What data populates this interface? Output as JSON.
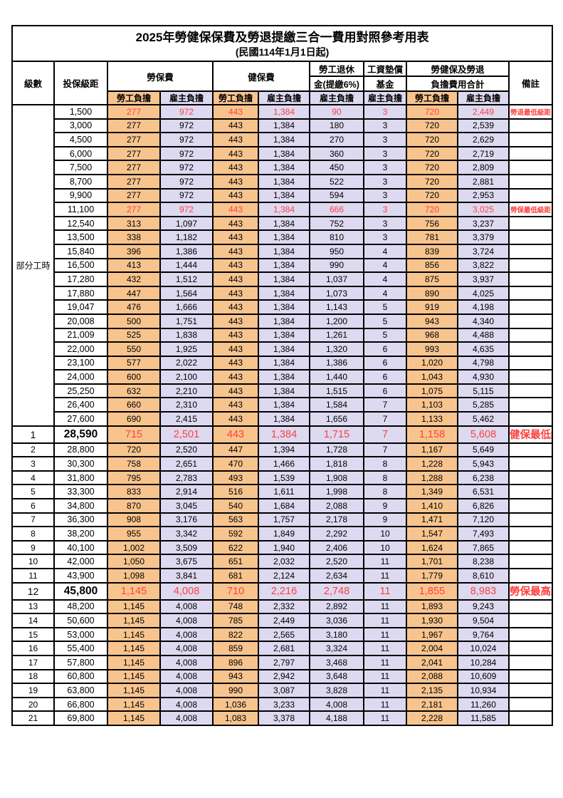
{
  "title": "2025年勞健保保費及勞退提繳三合一費用對照參考用表",
  "subtitle": "(民國114年1月1日起)",
  "header": {
    "level": "級數",
    "bracket": "投保級距",
    "labor_ins": "勞保費",
    "health_ins": "健保費",
    "pension_line1": "勞工退休",
    "pension_line2": "金(提繳6%)",
    "wage_fund_line1": "工資墊償",
    "wage_fund_line2": "基金",
    "total_line1": "勞健保及勞退",
    "total_line2": "負擔費用合計",
    "remark": "備註",
    "employee": "勞工負擔",
    "employer": "雇主負擔"
  },
  "colors": {
    "employee_bg": "#F8C48E",
    "employer_bg": "#DDD9F0",
    "highlight_text": "#FF4040",
    "border": "#000000"
  },
  "part_time_label": "部分工時",
  "part_time_rowspan": 23,
  "column_pattern": [
    "e",
    "r",
    "e",
    "r",
    "r",
    "r",
    "e",
    "r"
  ],
  "rows": [
    {
      "level": "",
      "bracket": "1,500",
      "values": [
        "277",
        "972",
        "443",
        "1,384",
        "90",
        "3",
        "720",
        "2,449"
      ],
      "remark": "勞退最低級距",
      "red": true,
      "large": false
    },
    {
      "level": "",
      "bracket": "3,000",
      "values": [
        "277",
        "972",
        "443",
        "1,384",
        "180",
        "3",
        "720",
        "2,539"
      ],
      "remark": "",
      "red": false,
      "large": false
    },
    {
      "level": "",
      "bracket": "4,500",
      "values": [
        "277",
        "972",
        "443",
        "1,384",
        "270",
        "3",
        "720",
        "2,629"
      ],
      "remark": "",
      "red": false,
      "large": false
    },
    {
      "level": "",
      "bracket": "6,000",
      "values": [
        "277",
        "972",
        "443",
        "1,384",
        "360",
        "3",
        "720",
        "2,719"
      ],
      "remark": "",
      "red": false,
      "large": false
    },
    {
      "level": "",
      "bracket": "7,500",
      "values": [
        "277",
        "972",
        "443",
        "1,384",
        "450",
        "3",
        "720",
        "2,809"
      ],
      "remark": "",
      "red": false,
      "large": false
    },
    {
      "level": "",
      "bracket": "8,700",
      "values": [
        "277",
        "972",
        "443",
        "1,384",
        "522",
        "3",
        "720",
        "2,881"
      ],
      "remark": "",
      "red": false,
      "large": false
    },
    {
      "level": "",
      "bracket": "9,900",
      "values": [
        "277",
        "972",
        "443",
        "1,384",
        "594",
        "3",
        "720",
        "2,953"
      ],
      "remark": "",
      "red": false,
      "large": false
    },
    {
      "level": "",
      "bracket": "11,100",
      "values": [
        "277",
        "972",
        "443",
        "1,384",
        "666",
        "3",
        "720",
        "3,025"
      ],
      "remark": "勞保最低級距",
      "red": true,
      "large": false
    },
    {
      "level": "",
      "bracket": "12,540",
      "values": [
        "313",
        "1,097",
        "443",
        "1,384",
        "752",
        "3",
        "756",
        "3,237"
      ],
      "remark": "",
      "red": false,
      "large": false
    },
    {
      "level": "",
      "bracket": "13,500",
      "values": [
        "338",
        "1,182",
        "443",
        "1,384",
        "810",
        "3",
        "781",
        "3,379"
      ],
      "remark": "",
      "red": false,
      "large": false
    },
    {
      "level": "",
      "bracket": "15,840",
      "values": [
        "396",
        "1,386",
        "443",
        "1,384",
        "950",
        "4",
        "839",
        "3,724"
      ],
      "remark": "",
      "red": false,
      "large": false
    },
    {
      "level": "",
      "bracket": "16,500",
      "values": [
        "413",
        "1,444",
        "443",
        "1,384",
        "990",
        "4",
        "856",
        "3,822"
      ],
      "remark": "",
      "red": false,
      "large": false
    },
    {
      "level": "",
      "bracket": "17,280",
      "values": [
        "432",
        "1,512",
        "443",
        "1,384",
        "1,037",
        "4",
        "875",
        "3,937"
      ],
      "remark": "",
      "red": false,
      "large": false
    },
    {
      "level": "",
      "bracket": "17,880",
      "values": [
        "447",
        "1,564",
        "443",
        "1,384",
        "1,073",
        "4",
        "890",
        "4,025"
      ],
      "remark": "",
      "red": false,
      "large": false
    },
    {
      "level": "",
      "bracket": "19,047",
      "values": [
        "476",
        "1,666",
        "443",
        "1,384",
        "1,143",
        "5",
        "919",
        "4,198"
      ],
      "remark": "",
      "red": false,
      "large": false
    },
    {
      "level": "",
      "bracket": "20,008",
      "values": [
        "500",
        "1,751",
        "443",
        "1,384",
        "1,200",
        "5",
        "943",
        "4,340"
      ],
      "remark": "",
      "red": false,
      "large": false
    },
    {
      "level": "",
      "bracket": "21,009",
      "values": [
        "525",
        "1,838",
        "443",
        "1,384",
        "1,261",
        "5",
        "968",
        "4,488"
      ],
      "remark": "",
      "red": false,
      "large": false
    },
    {
      "level": "",
      "bracket": "22,000",
      "values": [
        "550",
        "1,925",
        "443",
        "1,384",
        "1,320",
        "6",
        "993",
        "4,635"
      ],
      "remark": "",
      "red": false,
      "large": false
    },
    {
      "level": "",
      "bracket": "23,100",
      "values": [
        "577",
        "2,022",
        "443",
        "1,384",
        "1,386",
        "6",
        "1,020",
        "4,798"
      ],
      "remark": "",
      "red": false,
      "large": false
    },
    {
      "level": "",
      "bracket": "24,000",
      "values": [
        "600",
        "2,100",
        "443",
        "1,384",
        "1,440",
        "6",
        "1,043",
        "4,930"
      ],
      "remark": "",
      "red": false,
      "large": false
    },
    {
      "level": "",
      "bracket": "25,250",
      "values": [
        "632",
        "2,210",
        "443",
        "1,384",
        "1,515",
        "6",
        "1,075",
        "5,115"
      ],
      "remark": "",
      "red": false,
      "large": false
    },
    {
      "level": "",
      "bracket": "26,400",
      "values": [
        "660",
        "2,310",
        "443",
        "1,384",
        "1,584",
        "7",
        "1,103",
        "5,285"
      ],
      "remark": "",
      "red": false,
      "large": false
    },
    {
      "level": "",
      "bracket": "27,600",
      "values": [
        "690",
        "2,415",
        "443",
        "1,384",
        "1,656",
        "7",
        "1,133",
        "5,462"
      ],
      "remark": "",
      "red": false,
      "large": false
    },
    {
      "level": "1",
      "bracket": "28,590",
      "values": [
        "715",
        "2,501",
        "443",
        "1,384",
        "1,715",
        "7",
        "1,158",
        "5,608"
      ],
      "remark": "健保最低級距",
      "red": true,
      "large": true
    },
    {
      "level": "2",
      "bracket": "28,800",
      "values": [
        "720",
        "2,520",
        "447",
        "1,394",
        "1,728",
        "7",
        "1,167",
        "5,649"
      ],
      "remark": "",
      "red": false,
      "large": false
    },
    {
      "level": "3",
      "bracket": "30,300",
      "values": [
        "758",
        "2,651",
        "470",
        "1,466",
        "1,818",
        "8",
        "1,228",
        "5,943"
      ],
      "remark": "",
      "red": false,
      "large": false
    },
    {
      "level": "4",
      "bracket": "31,800",
      "values": [
        "795",
        "2,783",
        "493",
        "1,539",
        "1,908",
        "8",
        "1,288",
        "6,238"
      ],
      "remark": "",
      "red": false,
      "large": false
    },
    {
      "level": "5",
      "bracket": "33,300",
      "values": [
        "833",
        "2,914",
        "516",
        "1,611",
        "1,998",
        "8",
        "1,349",
        "6,531"
      ],
      "remark": "",
      "red": false,
      "large": false
    },
    {
      "level": "6",
      "bracket": "34,800",
      "values": [
        "870",
        "3,045",
        "540",
        "1,684",
        "2,088",
        "9",
        "1,410",
        "6,826"
      ],
      "remark": "",
      "red": false,
      "large": false
    },
    {
      "level": "7",
      "bracket": "36,300",
      "values": [
        "908",
        "3,176",
        "563",
        "1,757",
        "2,178",
        "9",
        "1,471",
        "7,120"
      ],
      "remark": "",
      "red": false,
      "large": false
    },
    {
      "level": "8",
      "bracket": "38,200",
      "values": [
        "955",
        "3,342",
        "592",
        "1,849",
        "2,292",
        "10",
        "1,547",
        "7,493"
      ],
      "remark": "",
      "red": false,
      "large": false
    },
    {
      "level": "9",
      "bracket": "40,100",
      "values": [
        "1,002",
        "3,509",
        "622",
        "1,940",
        "2,406",
        "10",
        "1,624",
        "7,865"
      ],
      "remark": "",
      "red": false,
      "large": false
    },
    {
      "level": "10",
      "bracket": "42,000",
      "values": [
        "1,050",
        "3,675",
        "651",
        "2,032",
        "2,520",
        "11",
        "1,701",
        "8,238"
      ],
      "remark": "",
      "red": false,
      "large": false
    },
    {
      "level": "11",
      "bracket": "43,900",
      "values": [
        "1,098",
        "3,841",
        "681",
        "2,124",
        "2,634",
        "11",
        "1,779",
        "8,610"
      ],
      "remark": "",
      "red": false,
      "large": false
    },
    {
      "level": "12",
      "bracket": "45,800",
      "values": [
        "1,145",
        "4,008",
        "710",
        "2,216",
        "2,748",
        "11",
        "1,855",
        "8,983"
      ],
      "remark": "勞保最高級距",
      "red": true,
      "large": true
    },
    {
      "level": "13",
      "bracket": "48,200",
      "values": [
        "1,145",
        "4,008",
        "748",
        "2,332",
        "2,892",
        "11",
        "1,893",
        "9,243"
      ],
      "remark": "",
      "red": false,
      "large": false
    },
    {
      "level": "14",
      "bracket": "50,600",
      "values": [
        "1,145",
        "4,008",
        "785",
        "2,449",
        "3,036",
        "11",
        "1,930",
        "9,504"
      ],
      "remark": "",
      "red": false,
      "large": false
    },
    {
      "level": "15",
      "bracket": "53,000",
      "values": [
        "1,145",
        "4,008",
        "822",
        "2,565",
        "3,180",
        "11",
        "1,967",
        "9,764"
      ],
      "remark": "",
      "red": false,
      "large": false
    },
    {
      "level": "16",
      "bracket": "55,400",
      "values": [
        "1,145",
        "4,008",
        "859",
        "2,681",
        "3,324",
        "11",
        "2,004",
        "10,024"
      ],
      "remark": "",
      "red": false,
      "large": false
    },
    {
      "level": "17",
      "bracket": "57,800",
      "values": [
        "1,145",
        "4,008",
        "896",
        "2,797",
        "3,468",
        "11",
        "2,041",
        "10,284"
      ],
      "remark": "",
      "red": false,
      "large": false
    },
    {
      "level": "18",
      "bracket": "60,800",
      "values": [
        "1,145",
        "4,008",
        "943",
        "2,942",
        "3,648",
        "11",
        "2,088",
        "10,609"
      ],
      "remark": "",
      "red": false,
      "large": false
    },
    {
      "level": "19",
      "bracket": "63,800",
      "values": [
        "1,145",
        "4,008",
        "990",
        "3,087",
        "3,828",
        "11",
        "2,135",
        "10,934"
      ],
      "remark": "",
      "red": false,
      "large": false
    },
    {
      "level": "20",
      "bracket": "66,800",
      "values": [
        "1,145",
        "4,008",
        "1,036",
        "3,233",
        "4,008",
        "11",
        "2,181",
        "11,260"
      ],
      "remark": "",
      "red": false,
      "large": false
    },
    {
      "level": "21",
      "bracket": "69,800",
      "values": [
        "1,145",
        "4,008",
        "1,083",
        "3,378",
        "4,188",
        "11",
        "2,228",
        "11,585"
      ],
      "remark": "",
      "red": false,
      "large": false
    }
  ]
}
